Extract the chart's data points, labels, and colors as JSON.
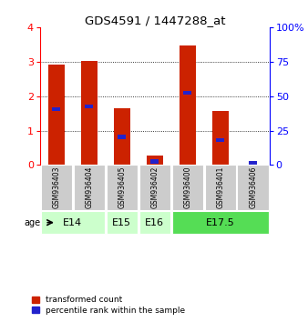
{
  "title": "GDS4591 / 1447288_at",
  "samples": [
    "GSM936403",
    "GSM936404",
    "GSM936405",
    "GSM936402",
    "GSM936400",
    "GSM936401",
    "GSM936406"
  ],
  "transformed_counts": [
    2.92,
    3.02,
    1.65,
    0.28,
    3.48,
    1.58,
    0.0
  ],
  "percentile_ranks": [
    1.62,
    1.7,
    0.82,
    0.1,
    2.1,
    0.72,
    0.05
  ],
  "age_group_spans": [
    {
      "label": "E14",
      "start": 0,
      "end": 2,
      "color": "#ccffcc"
    },
    {
      "label": "E15",
      "start": 2,
      "end": 3,
      "color": "#ccffcc"
    },
    {
      "label": "E16",
      "start": 3,
      "end": 4,
      "color": "#ccffcc"
    },
    {
      "label": "E17.5",
      "start": 4,
      "end": 7,
      "color": "#55dd55"
    }
  ],
  "bar_color": "#cc2200",
  "percentile_color": "#2222cc",
  "ylim": [
    0,
    4
  ],
  "yticks_left": [
    0,
    1,
    2,
    3,
    4
  ],
  "yticks_right": [
    0,
    25,
    50,
    75,
    100
  ],
  "background_color": "#ffffff",
  "sample_bg_color": "#cccccc",
  "bar_width": 0.5
}
